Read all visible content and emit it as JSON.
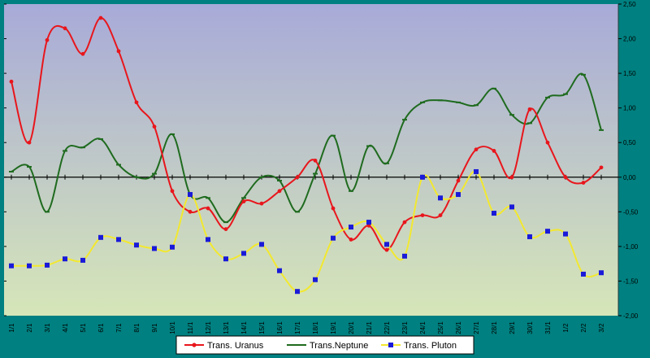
{
  "chart_data": {
    "type": "line",
    "title": "",
    "xlabel": "",
    "ylabel": "",
    "categories": [
      "1/1",
      "2/1",
      "3/1",
      "4/1",
      "5/1",
      "6/1",
      "7/1",
      "8/1",
      "9/1",
      "10/1",
      "11/1",
      "12/1",
      "13/1",
      "14/1",
      "15/1",
      "16/1",
      "17/1",
      "18/1",
      "19/1",
      "20/1",
      "21/1",
      "22/1",
      "23/1",
      "24/1",
      "25/1",
      "26/1",
      "27/1",
      "28/1",
      "29/1",
      "30/1",
      "31/1",
      "1/2",
      "2/2",
      "3/2"
    ],
    "ylim": [
      -2.0,
      2.5
    ],
    "y_ticks": [
      "-2,00",
      "-1,50",
      "-1,00",
      "-0,50",
      "0,00",
      "0,50",
      "1,00",
      "1,50",
      "2,00",
      "2,50"
    ],
    "y_tick_values": [
      -2.0,
      -1.5,
      -1.0,
      -0.5,
      0.0,
      0.5,
      1.0,
      1.5,
      2.0,
      2.5
    ],
    "y_axis_side": "right",
    "legend_position": "bottom-center",
    "background_gradient": [
      "#a8aad8",
      "#d6e6b8"
    ],
    "series": [
      {
        "name": "Trans. Uranus",
        "color": "#e8161c",
        "marker": "circle",
        "values": [
          1.38,
          0.5,
          1.98,
          2.15,
          1.78,
          2.3,
          1.82,
          1.08,
          0.73,
          -0.2,
          -0.5,
          -0.45,
          -0.75,
          -0.35,
          -0.38,
          -0.2,
          0.0,
          0.24,
          -0.45,
          -0.9,
          -0.7,
          -1.05,
          -0.65,
          -0.55,
          -0.55,
          -0.05,
          0.4,
          0.38,
          0.0,
          0.98,
          0.5,
          0.0,
          -0.08,
          0.14
        ]
      },
      {
        "name": "Trans.Neptune",
        "color": "#1f6b1f",
        "marker": "dash",
        "values": [
          0.08,
          0.15,
          -0.5,
          0.38,
          0.43,
          0.55,
          0.18,
          0.0,
          0.05,
          0.62,
          -0.25,
          -0.3,
          -0.65,
          -0.3,
          0.0,
          -0.05,
          -0.5,
          0.05,
          0.6,
          -0.2,
          0.45,
          0.2,
          0.83,
          1.08,
          1.11,
          1.08,
          1.04,
          1.28,
          0.9,
          0.78,
          1.15,
          1.2,
          1.48,
          0.68
        ]
      },
      {
        "name": "Trans. Pluton",
        "color": "#f2e830",
        "marker": "square",
        "marker_color": "#1a1ad8",
        "values": [
          -1.28,
          -1.28,
          -1.27,
          -1.18,
          -1.2,
          -0.87,
          -0.9,
          -0.98,
          -1.03,
          -1.01,
          -0.25,
          -0.9,
          -1.18,
          -1.1,
          -0.97,
          -1.35,
          -1.65,
          -1.48,
          -0.88,
          -0.72,
          -0.65,
          -0.97,
          -1.14,
          0.0,
          -0.3,
          -0.25,
          0.08,
          -0.52,
          -0.43,
          -0.86,
          -0.78,
          -0.82,
          -1.4,
          -1.38
        ]
      }
    ]
  }
}
